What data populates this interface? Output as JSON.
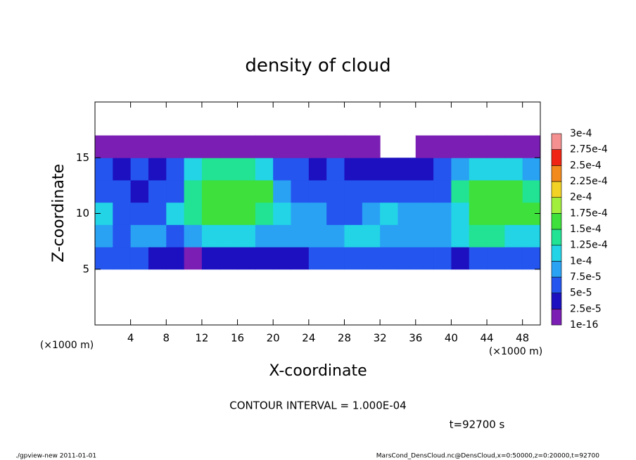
{
  "chart_data": {
    "type": "heatmap",
    "title": "density of cloud",
    "xlabel": "X-coordinate",
    "ylabel": "Z-coordinate",
    "x_unit_left": "(×1000 m)",
    "x_unit_right": "(×1000 m)",
    "contour_note": "CONTOUR INTERVAL = 1.000E-04",
    "time_note": "t=92700 s",
    "footer_left": "./gpview-new  2011-01-01",
    "footer_right": "MarsCond_DensCloud.nc@DensCloud,x=0:50000,z=0:20000,t=92700",
    "xlim": [
      0,
      50
    ],
    "ylim": [
      0,
      20
    ],
    "xticks": [
      4,
      8,
      12,
      16,
      20,
      24,
      28,
      32,
      36,
      40,
      44,
      48
    ],
    "yticks": [
      5,
      10,
      15
    ],
    "x": [
      1,
      3,
      5,
      7,
      9,
      11,
      13,
      15,
      17,
      19,
      21,
      23,
      25,
      27,
      29,
      31,
      33,
      35,
      37,
      39,
      41,
      43,
      45,
      47,
      49
    ],
    "y": [
      6,
      8,
      10,
      12,
      14,
      16
    ],
    "z": [
      [
        6e-05,
        6e-05,
        5e-05,
        4e-05,
        3e-05,
        2e-05,
        3e-05,
        4e-05,
        3e-05,
        4e-05,
        4e-05,
        3e-05,
        5e-05,
        6e-05,
        6e-05,
        5e-05,
        6e-05,
        6e-05,
        5e-05,
        5e-05,
        4e-05,
        6e-05,
        7e-05,
        6e-05,
        5e-05
      ],
      [
        8e-05,
        7e-05,
        9e-05,
        8e-05,
        6e-05,
        9e-05,
        0.00011,
        0.00012,
        0.00011,
        9e-05,
        8e-05,
        9e-05,
        8e-05,
        9e-05,
        0.00011,
        0.0001,
        9e-05,
        8e-05,
        9e-05,
        8e-05,
        0.0001,
        0.00013,
        0.00013,
        0.00012,
        0.00011
      ],
      [
        0.00011,
        6e-05,
        5e-05,
        6e-05,
        0.0001,
        0.00014,
        0.00015,
        0.00015,
        0.00015,
        0.00014,
        0.00011,
        8e-05,
        9e-05,
        7e-05,
        7e-05,
        8e-05,
        0.0001,
        9e-05,
        8e-05,
        8e-05,
        0.00012,
        0.00015,
        0.00015,
        0.00016,
        0.00015
      ],
      [
        7e-05,
        6e-05,
        4e-05,
        5e-05,
        6e-05,
        0.00014,
        0.00016,
        0.00016,
        0.00016,
        0.00015,
        8e-05,
        6e-05,
        5e-05,
        6e-05,
        6e-05,
        5e-05,
        6e-05,
        5e-05,
        6e-05,
        7e-05,
        0.00013,
        0.00016,
        0.00016,
        0.00016,
        0.00014
      ],
      [
        5e-05,
        4e-05,
        6e-05,
        4e-05,
        6e-05,
        0.00011,
        0.00013,
        0.00014,
        0.00014,
        0.00012,
        6e-05,
        5e-05,
        4e-05,
        5e-05,
        4e-05,
        3e-05,
        4e-05,
        3e-05,
        4e-05,
        5e-05,
        8e-05,
        0.0001,
        0.00012,
        0.0001,
        8e-05
      ],
      [
        1e-05,
        1e-05,
        1e-05,
        1e-05,
        1e-05,
        1e-05,
        2e-05,
        2e-05,
        2e-05,
        1e-05,
        1e-05,
        1e-05,
        1e-05,
        1e-05,
        1e-05,
        1e-05,
        null,
        null,
        1e-05,
        1e-05,
        1e-05,
        1e-05,
        1e-05,
        1e-05,
        1e-05
      ]
    ],
    "levels": [
      {
        "value": 1e-16,
        "label": "1e-16"
      },
      {
        "value": 2.5e-05,
        "label": "2.5e-5"
      },
      {
        "value": 5e-05,
        "label": "5e-5"
      },
      {
        "value": 7.5e-05,
        "label": "7.5e-5"
      },
      {
        "value": 0.0001,
        "label": "1e-4"
      },
      {
        "value": 0.000125,
        "label": "1.25e-4"
      },
      {
        "value": 0.00015,
        "label": "1.5e-4"
      },
      {
        "value": 0.000175,
        "label": "1.75e-4"
      },
      {
        "value": 0.0002,
        "label": "2e-4"
      },
      {
        "value": 0.000225,
        "label": "2.25e-4"
      },
      {
        "value": 0.00025,
        "label": "2.5e-4"
      },
      {
        "value": 0.000275,
        "label": "2.75e-4"
      },
      {
        "value": 0.0003,
        "label": "3e-4"
      }
    ],
    "colors": [
      "#7a1eb4",
      "#1c10c0",
      "#2455ee",
      "#2aa2f4",
      "#22d4e6",
      "#22e294",
      "#3ee03c",
      "#a2ee3c",
      "#f2d224",
      "#f28a1e",
      "#f02414",
      "#f49090"
    ]
  }
}
